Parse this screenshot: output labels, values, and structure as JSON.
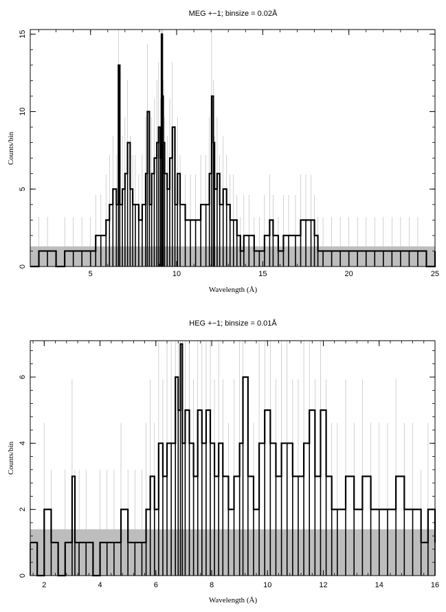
{
  "chart_data": [
    {
      "type": "line",
      "title": "MEG +−1; binsize = 0.02Å",
      "xlabel": "Wavelength (Å)",
      "ylabel": "Counts/bin",
      "xlim": [
        1.5,
        25
      ],
      "ylim": [
        0,
        15.3
      ],
      "xticks": [
        5,
        10,
        15,
        20,
        25
      ],
      "yticks": [
        0,
        5,
        10,
        15
      ],
      "grid": false,
      "background_band": [
        0,
        1.3
      ],
      "colors": {
        "counts": "#000000",
        "errors": "#bdbdbd",
        "band": "#bdbdbd"
      },
      "series": [
        {
          "x": [
            1.5,
            2.0,
            2.5,
            3.0,
            3.5,
            4.0,
            4.5,
            5.0,
            5.3,
            5.6,
            5.9,
            6.1,
            6.3,
            6.5,
            6.62,
            6.7,
            6.85,
            7.0,
            7.15,
            7.3,
            7.45,
            7.6,
            7.8,
            8.0,
            8.2,
            8.3,
            8.42,
            8.55,
            8.7,
            8.85,
            8.95,
            9.05,
            9.12,
            9.17,
            9.22,
            9.3,
            9.45,
            9.6,
            9.75,
            9.9,
            10.05,
            10.2,
            10.5,
            10.8,
            11.1,
            11.4,
            11.7,
            11.9,
            12.03,
            12.13,
            12.2,
            12.35,
            12.5,
            12.7,
            12.9,
            13.1,
            13.3,
            13.5,
            13.7,
            13.9,
            14.2,
            14.5,
            14.8,
            15.1,
            15.4,
            15.6,
            15.9,
            16.2,
            16.5,
            16.9,
            17.2,
            17.5,
            17.8,
            18.0,
            18.2,
            18.5,
            19.0,
            19.5,
            20.0,
            20.5,
            21.0,
            21.5,
            22.0,
            22.5,
            23.0,
            23.5,
            24.0,
            24.5,
            25.0
          ],
          "values": [
            0,
            1,
            1,
            0,
            1,
            1,
            1,
            1,
            2,
            2,
            3,
            4,
            5,
            4,
            13,
            4,
            5,
            6,
            8,
            5,
            4,
            4,
            3,
            4,
            6,
            10,
            4,
            6,
            7,
            8,
            9,
            7,
            15,
            11,
            8,
            6,
            5,
            7,
            9,
            4,
            6,
            4,
            3,
            3,
            3,
            4,
            4,
            6,
            11,
            8,
            5,
            6,
            4,
            5,
            4,
            3,
            3,
            2,
            1,
            2,
            2,
            1,
            1,
            2,
            3,
            2,
            1,
            2,
            2,
            2,
            3,
            3,
            3,
            2,
            1,
            1,
            1,
            1,
            1,
            1,
            1,
            1,
            1,
            1,
            1,
            1,
            1,
            0,
            1
          ]
        }
      ]
    },
    {
      "type": "line",
      "title": "HEG +−1; binsize = 0.01Å",
      "xlabel": "Wavelength (Å)",
      "ylabel": "Counts/bin",
      "xlim": [
        1.5,
        16
      ],
      "ylim": [
        0,
        7.1
      ],
      "xticks": [
        2,
        4,
        6,
        8,
        10,
        12,
        14,
        16
      ],
      "yticks": [
        0,
        2,
        4,
        6
      ],
      "grid": false,
      "background_band": [
        0,
        1.4
      ],
      "colors": {
        "counts": "#000000",
        "errors": "#bdbdbd",
        "band": "#bdbdbd"
      },
      "series": [
        {
          "x": [
            1.5,
            1.75,
            2.0,
            2.25,
            2.5,
            2.75,
            3.0,
            3.1,
            3.25,
            3.5,
            3.75,
            4.0,
            4.25,
            4.5,
            4.75,
            5.0,
            5.25,
            5.5,
            5.65,
            5.8,
            5.95,
            6.1,
            6.25,
            6.4,
            6.55,
            6.7,
            6.8,
            6.88,
            6.95,
            7.05,
            7.2,
            7.35,
            7.5,
            7.65,
            7.8,
            7.95,
            8.1,
            8.25,
            8.4,
            8.6,
            8.8,
            9.0,
            9.12,
            9.3,
            9.5,
            9.7,
            9.9,
            10.1,
            10.3,
            10.5,
            10.7,
            10.9,
            11.1,
            11.3,
            11.5,
            11.7,
            11.9,
            12.1,
            12.3,
            12.5,
            12.8,
            13.1,
            13.4,
            13.7,
            14.0,
            14.3,
            14.6,
            14.9,
            15.2,
            15.5,
            15.75,
            16.0
          ],
          "values": [
            1,
            0,
            2,
            1,
            0,
            1,
            3,
            1,
            1,
            1,
            0,
            1,
            1,
            1,
            2,
            1,
            1,
            1,
            2,
            3,
            2,
            4,
            3,
            4,
            4,
            6,
            5,
            7,
            4,
            5,
            4,
            3,
            5,
            4,
            5,
            4,
            3,
            4,
            3,
            2,
            3,
            4,
            6,
            3,
            2,
            4,
            5,
            4,
            3,
            4,
            4,
            3,
            3,
            4,
            5,
            3,
            5,
            3,
            2,
            2,
            3,
            2,
            3,
            2,
            2,
            2,
            3,
            2,
            2,
            1,
            2,
            1
          ]
        }
      ]
    }
  ]
}
